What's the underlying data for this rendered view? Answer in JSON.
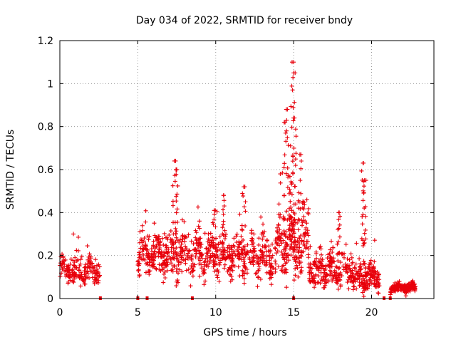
{
  "chart_data": {
    "type": "scatter",
    "title": "Day 034 of 2022, SRMTID for receiver bndy",
    "xlabel": "GPS time / hours",
    "ylabel": "SRMTID / TECUs",
    "xlim": [
      0,
      24
    ],
    "ylim": [
      0,
      1.2
    ],
    "x_ticks": [
      "0",
      "5",
      "10",
      "15",
      "20"
    ],
    "y_ticks": [
      "0",
      "0.2",
      "0.4",
      "0.6",
      "0.8",
      "1",
      "1.2"
    ],
    "grid": true,
    "marker": "+",
    "series_color": "#e8000b",
    "segments": [
      {
        "x0": 0.0,
        "x1": 2.6,
        "base": 0.13,
        "spread": 0.04,
        "n": 180
      },
      {
        "x0": 5.0,
        "x1": 7.0,
        "base": 0.2,
        "spread": 0.06,
        "n": 180
      },
      {
        "x0": 7.0,
        "x1": 14.0,
        "base": 0.2,
        "spread": 0.07,
        "n": 520
      },
      {
        "x0": 14.0,
        "x1": 16.0,
        "base": 0.27,
        "spread": 0.1,
        "n": 200
      },
      {
        "x0": 16.0,
        "x1": 18.8,
        "base": 0.13,
        "spread": 0.05,
        "n": 220
      },
      {
        "x0": 18.8,
        "x1": 20.5,
        "base": 0.1,
        "spread": 0.04,
        "n": 160
      },
      {
        "x0": 21.2,
        "x1": 22.8,
        "base": 0.05,
        "spread": 0.015,
        "n": 180
      }
    ],
    "peaks": [
      {
        "x": 7.35,
        "y": 0.64
      },
      {
        "x": 7.5,
        "y": 0.6
      },
      {
        "x": 14.45,
        "y": 0.82
      },
      {
        "x": 14.6,
        "y": 0.88
      },
      {
        "x": 14.9,
        "y": 1.1
      },
      {
        "x": 15.0,
        "y": 1.05
      },
      {
        "x": 15.05,
        "y": 0.84
      },
      {
        "x": 15.4,
        "y": 0.67
      },
      {
        "x": 19.45,
        "y": 0.63
      },
      {
        "x": 19.55,
        "y": 0.55
      },
      {
        "x": 9.9,
        "y": 0.41
      },
      {
        "x": 10.5,
        "y": 0.48
      },
      {
        "x": 11.8,
        "y": 0.52
      },
      {
        "x": 17.9,
        "y": 0.4
      }
    ],
    "zero_markers": [
      2.6,
      5.0,
      5.6,
      8.5,
      15.0,
      20.8,
      21.2
    ]
  }
}
